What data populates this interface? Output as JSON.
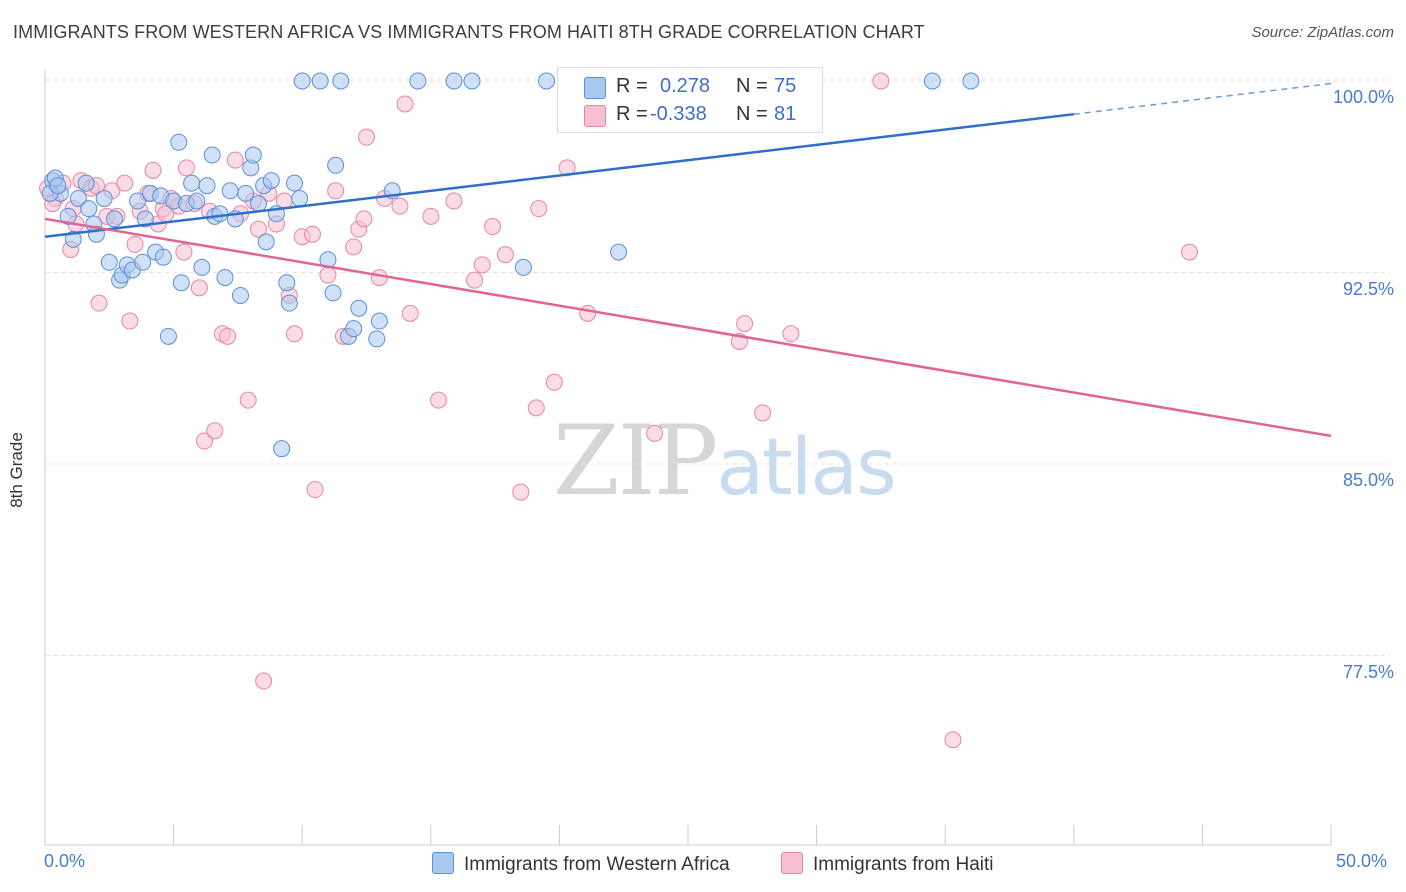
{
  "title": "IMMIGRANTS FROM WESTERN AFRICA VS IMMIGRANTS FROM HAITI 8TH GRADE CORRELATION CHART",
  "source": "Source: ZipAtlas.com",
  "watermark": {
    "zip": "ZIP",
    "atlas": "atlas"
  },
  "colors": {
    "blue_fill": "#a9c8f0",
    "blue_stroke": "#5b8fd6",
    "blue_line": "#2f6fcb",
    "pink_fill": "#f6c0d2",
    "pink_stroke": "#e585a7",
    "pink_line": "#e06595",
    "tick_text": "#4a7bd0",
    "grid": "#e3e3e3"
  },
  "legend": {
    "r_label": "R =",
    "n_label": "N =",
    "rows": [
      {
        "r": "0.278",
        "n": "75"
      },
      {
        "r": "-0.338",
        "n": "81"
      }
    ]
  },
  "chart_data": {
    "type": "scatter",
    "title": "IMMIGRANTS FROM WESTERN AFRICA VS IMMIGRANTS FROM HAITI 8TH GRADE CORRELATION CHART",
    "xlabel": "",
    "ylabel": "8th Grade",
    "xlim": [
      0,
      50
    ],
    "ylim": [
      71.6,
      101.2
    ],
    "x_tick_labels": [
      "0.0%",
      "50.0%"
    ],
    "y_ticks": [
      77.5,
      85.0,
      92.5,
      100.0
    ],
    "y_tick_labels": [
      "77.5%",
      "85.0%",
      "92.5%",
      "100.0%"
    ],
    "grid": true,
    "series": [
      {
        "name": "Immigrants from Western Africa",
        "color": "blue",
        "trend": {
          "x0": 0,
          "y0": 93.9,
          "x1": 40,
          "y1": 98.7,
          "dashed_to_x": 50,
          "dashed_to_y": 99.9
        },
        "points": [
          [
            0.3,
            96.1
          ],
          [
            0.6,
            95.6
          ],
          [
            0.9,
            94.7
          ],
          [
            1.1,
            93.8
          ],
          [
            1.3,
            95.4
          ],
          [
            1.6,
            96.0
          ],
          [
            1.9,
            94.4
          ],
          [
            2.0,
            94.0
          ],
          [
            2.3,
            95.4
          ],
          [
            2.5,
            92.9
          ],
          [
            2.7,
            94.6
          ],
          [
            2.9,
            92.2
          ],
          [
            3.0,
            92.4
          ],
          [
            3.2,
            92.8
          ],
          [
            3.4,
            92.6
          ],
          [
            3.6,
            95.3
          ],
          [
            3.8,
            92.9
          ],
          [
            3.9,
            94.6
          ],
          [
            4.1,
            95.6
          ],
          [
            4.3,
            93.3
          ],
          [
            4.5,
            95.5
          ],
          [
            4.6,
            93.1
          ],
          [
            4.8,
            90.0
          ],
          [
            5.0,
            95.3
          ],
          [
            5.2,
            97.6
          ],
          [
            5.3,
            92.1
          ],
          [
            5.5,
            95.2
          ],
          [
            5.7,
            96.0
          ],
          [
            5.9,
            95.3
          ],
          [
            6.1,
            92.7
          ],
          [
            6.3,
            95.9
          ],
          [
            6.5,
            97.1
          ],
          [
            6.6,
            94.7
          ],
          [
            6.8,
            94.8
          ],
          [
            7.0,
            92.3
          ],
          [
            7.2,
            95.7
          ],
          [
            7.4,
            94.6
          ],
          [
            7.6,
            91.6
          ],
          [
            7.8,
            95.6
          ],
          [
            8.0,
            96.6
          ],
          [
            8.1,
            97.1
          ],
          [
            8.3,
            95.2
          ],
          [
            8.5,
            95.9
          ],
          [
            8.6,
            93.7
          ],
          [
            8.8,
            96.1
          ],
          [
            9.0,
            94.8
          ],
          [
            9.2,
            85.6
          ],
          [
            9.4,
            92.1
          ],
          [
            9.5,
            91.3
          ],
          [
            9.7,
            96.0
          ],
          [
            9.9,
            95.4
          ],
          [
            10.0,
            100.0
          ],
          [
            10.7,
            100.0
          ],
          [
            11.0,
            93.0
          ],
          [
            11.2,
            91.7
          ],
          [
            11.3,
            96.7
          ],
          [
            11.5,
            100.0
          ],
          [
            11.8,
            90.0
          ],
          [
            12.0,
            90.3
          ],
          [
            12.2,
            91.1
          ],
          [
            12.9,
            89.9
          ],
          [
            13.0,
            90.6
          ],
          [
            13.5,
            95.7
          ],
          [
            14.5,
            100.0
          ],
          [
            15.9,
            100.0
          ],
          [
            16.6,
            100.0
          ],
          [
            18.6,
            92.7
          ],
          [
            19.5,
            100.0
          ],
          [
            22.3,
            93.3
          ],
          [
            34.5,
            100.0
          ],
          [
            36.0,
            100.0
          ],
          [
            0.2,
            95.6
          ],
          [
            0.4,
            96.2
          ],
          [
            0.5,
            95.9
          ],
          [
            1.7,
            95.0
          ]
        ]
      },
      {
        "name": "Immigrants from Haiti",
        "color": "pink",
        "trend": {
          "x0": 0,
          "y0": 94.6,
          "x1": 50,
          "y1": 86.1
        },
        "points": [
          [
            0.4,
            95.4
          ],
          [
            0.7,
            96.0
          ],
          [
            1.0,
            93.4
          ],
          [
            1.2,
            94.4
          ],
          [
            1.4,
            96.1
          ],
          [
            1.8,
            95.8
          ],
          [
            2.1,
            91.3
          ],
          [
            2.4,
            94.7
          ],
          [
            2.6,
            95.7
          ],
          [
            2.8,
            94.7
          ],
          [
            3.1,
            96.0
          ],
          [
            3.3,
            90.6
          ],
          [
            3.5,
            93.6
          ],
          [
            3.7,
            94.9
          ],
          [
            4.0,
            95.6
          ],
          [
            4.2,
            96.5
          ],
          [
            4.4,
            94.4
          ],
          [
            4.6,
            95.0
          ],
          [
            4.9,
            95.4
          ],
          [
            5.2,
            95.1
          ],
          [
            5.4,
            93.3
          ],
          [
            5.5,
            96.6
          ],
          [
            5.8,
            95.2
          ],
          [
            6.0,
            91.9
          ],
          [
            6.2,
            85.9
          ],
          [
            6.4,
            94.9
          ],
          [
            6.6,
            86.3
          ],
          [
            6.9,
            90.1
          ],
          [
            7.1,
            90.0
          ],
          [
            7.4,
            96.9
          ],
          [
            7.6,
            94.8
          ],
          [
            7.9,
            87.5
          ],
          [
            8.1,
            95.3
          ],
          [
            8.3,
            94.2
          ],
          [
            8.5,
            76.5
          ],
          [
            8.7,
            95.6
          ],
          [
            9.0,
            94.4
          ],
          [
            9.3,
            95.3
          ],
          [
            9.5,
            91.6
          ],
          [
            9.7,
            90.1
          ],
          [
            10.0,
            93.9
          ],
          [
            10.4,
            94.0
          ],
          [
            10.5,
            84.0
          ],
          [
            11.0,
            92.4
          ],
          [
            11.3,
            95.7
          ],
          [
            11.6,
            90.0
          ],
          [
            12.0,
            93.5
          ],
          [
            12.2,
            94.2
          ],
          [
            12.4,
            94.6
          ],
          [
            12.5,
            97.8
          ],
          [
            13.0,
            92.3
          ],
          [
            13.2,
            95.4
          ],
          [
            13.8,
            95.1
          ],
          [
            14.0,
            99.1
          ],
          [
            14.2,
            90.9
          ],
          [
            15.0,
            94.7
          ],
          [
            15.3,
            87.5
          ],
          [
            15.9,
            95.3
          ],
          [
            16.7,
            92.2
          ],
          [
            17.0,
            92.8
          ],
          [
            17.4,
            94.3
          ],
          [
            17.9,
            93.2
          ],
          [
            18.5,
            83.9
          ],
          [
            19.2,
            95.0
          ],
          [
            19.1,
            87.2
          ],
          [
            19.8,
            88.2
          ],
          [
            20.3,
            96.6
          ],
          [
            21.1,
            90.9
          ],
          [
            23.7,
            86.2
          ],
          [
            27.0,
            89.8
          ],
          [
            27.2,
            90.5
          ],
          [
            27.9,
            87.0
          ],
          [
            29.0,
            90.1
          ],
          [
            32.5,
            100.0
          ],
          [
            35.3,
            74.2
          ],
          [
            44.5,
            93.3
          ],
          [
            0.1,
            95.8
          ],
          [
            0.3,
            95.2
          ],
          [
            1.1,
            95.0
          ],
          [
            2.0,
            95.9
          ],
          [
            4.7,
            94.8
          ]
        ]
      }
    ]
  }
}
